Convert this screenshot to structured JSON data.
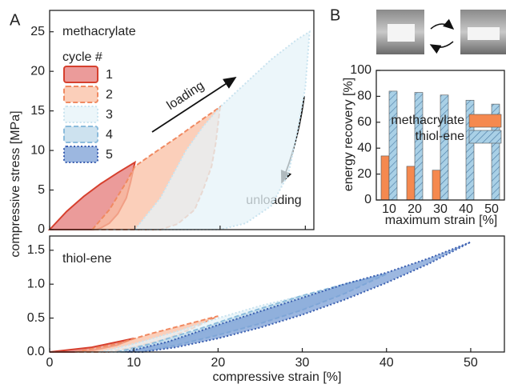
{
  "panel_labels": [
    "A",
    "B"
  ],
  "chart_data": [
    {
      "type": "area",
      "annotation": "methacrylate",
      "legend_title": "cycle #",
      "ylabel": "compressive stress [MPa]",
      "loading_label": "loading",
      "unloading_label": "unloading",
      "xlim": [
        0,
        31
      ],
      "ylim": [
        0,
        27.7
      ],
      "xticks": [
        0,
        10,
        20,
        30
      ],
      "yticks": [
        0,
        5,
        10,
        15,
        20,
        25
      ],
      "series": [
        {
          "color": "#d6402e",
          "fill": "#e47a78",
          "line_style": "solid",
          "x": [
            0,
            2,
            4,
            6,
            8,
            10,
            9.5,
            9,
            8,
            7,
            6,
            5.5
          ],
          "values": [
            0,
            2.3,
            4.2,
            5.8,
            7.2,
            8.5,
            6,
            4,
            2,
            0.8,
            0.2,
            0
          ]
        },
        {
          "color": "#f08a62",
          "fill": "#f9bfa3",
          "line_style": "dashed",
          "x": [
            5,
            7,
            9,
            10,
            12,
            15,
            18,
            20,
            19.5,
            19,
            18,
            17,
            15,
            13
          ],
          "values": [
            0,
            2.5,
            6,
            8,
            9.5,
            11.7,
            14,
            15.5,
            11,
            8,
            5,
            2.5,
            0.7,
            0
          ]
        },
        {
          "color": "#c9e3ef",
          "fill": "#e6f3f8",
          "line_style": "dotted",
          "x": [
            10,
            13,
            16,
            18,
            20,
            23,
            26,
            29,
            30.5,
            30,
            29,
            28,
            26,
            23,
            20
          ],
          "values": [
            0,
            4,
            10,
            13,
            15.5,
            18.5,
            21.5,
            24,
            25,
            18,
            12,
            7,
            3,
            0.8,
            0
          ]
        }
      ]
    },
    {
      "type": "area",
      "annotation": "thiol-ene",
      "xlabel": "compressive strain [%]",
      "xlim": [
        0,
        54
      ],
      "ylim": [
        0,
        1.71
      ],
      "xticks": [
        0,
        10,
        20,
        30,
        40,
        50
      ],
      "yticks": [
        {
          "value": 0,
          "label": "0.0"
        },
        0.5,
        {
          "value": 1,
          "label": "1.0"
        },
        1.5
      ],
      "series": [
        {
          "name": "1",
          "color": "#d6402e",
          "fill": "#e47a78",
          "line_style": "solid",
          "x": [
            0,
            5,
            10,
            8,
            5,
            3
          ],
          "values": [
            0,
            0.07,
            0.2,
            0.1,
            0.02,
            0
          ]
        },
        {
          "name": "2",
          "color": "#f08a62",
          "fill": "#f9bfa3",
          "line_style": "dashed",
          "x": [
            3,
            8,
            12,
            16,
            20,
            17,
            14,
            10,
            7
          ],
          "values": [
            0,
            0.12,
            0.27,
            0.4,
            0.53,
            0.35,
            0.2,
            0.07,
            0
          ]
        },
        {
          "name": "3",
          "color": "#c9e3ef",
          "fill": "#e6f3f8",
          "line_style": "dotted",
          "x": [
            6,
            10,
            15,
            20,
            25,
            30,
            25,
            20,
            15,
            10,
            9
          ],
          "values": [
            0,
            0.12,
            0.3,
            0.5,
            0.68,
            0.83,
            0.58,
            0.36,
            0.16,
            0.02,
            0
          ]
        },
        {
          "name": "4",
          "color": "#8cbcdc",
          "fill": "#bcd8ea",
          "line_style": "dashed",
          "x": [
            8,
            12,
            18,
            24,
            30,
            35,
            40,
            35,
            30,
            25,
            20,
            15,
            11
          ],
          "values": [
            0,
            0.12,
            0.35,
            0.6,
            0.83,
            1,
            1.15,
            0.86,
            0.62,
            0.42,
            0.25,
            0.1,
            0
          ]
        },
        {
          "name": "5",
          "color": "#3a5eb0",
          "fill": "#7b9fd6",
          "line_style": "dotted",
          "x": [
            9,
            14,
            20,
            25,
            30,
            35,
            40,
            45,
            50,
            45,
            40,
            35,
            30,
            25,
            20,
            15,
            11
          ],
          "values": [
            0,
            0.15,
            0.4,
            0.6,
            0.8,
            1,
            1.17,
            1.38,
            1.62,
            1.3,
            1.02,
            0.77,
            0.55,
            0.36,
            0.2,
            0.07,
            0
          ]
        }
      ]
    },
    {
      "type": "bar",
      "xlabel": "maximum strain [%]",
      "ylabel": "energy recovery [%]",
      "categories": [
        "10",
        "20",
        "30",
        "40",
        "50"
      ],
      "ylim": [
        0,
        100
      ],
      "yticks": [
        0,
        20,
        40,
        60,
        80,
        100
      ],
      "series": [
        {
          "name": "methacrylate",
          "color": "#f5894f",
          "hatch": false,
          "values": [
            34,
            26,
            23,
            null,
            null
          ]
        },
        {
          "name": "thiol-ene",
          "color": "#a9d0e6",
          "hatch": true,
          "values": [
            84,
            83,
            81,
            77,
            74
          ]
        }
      ]
    }
  ]
}
